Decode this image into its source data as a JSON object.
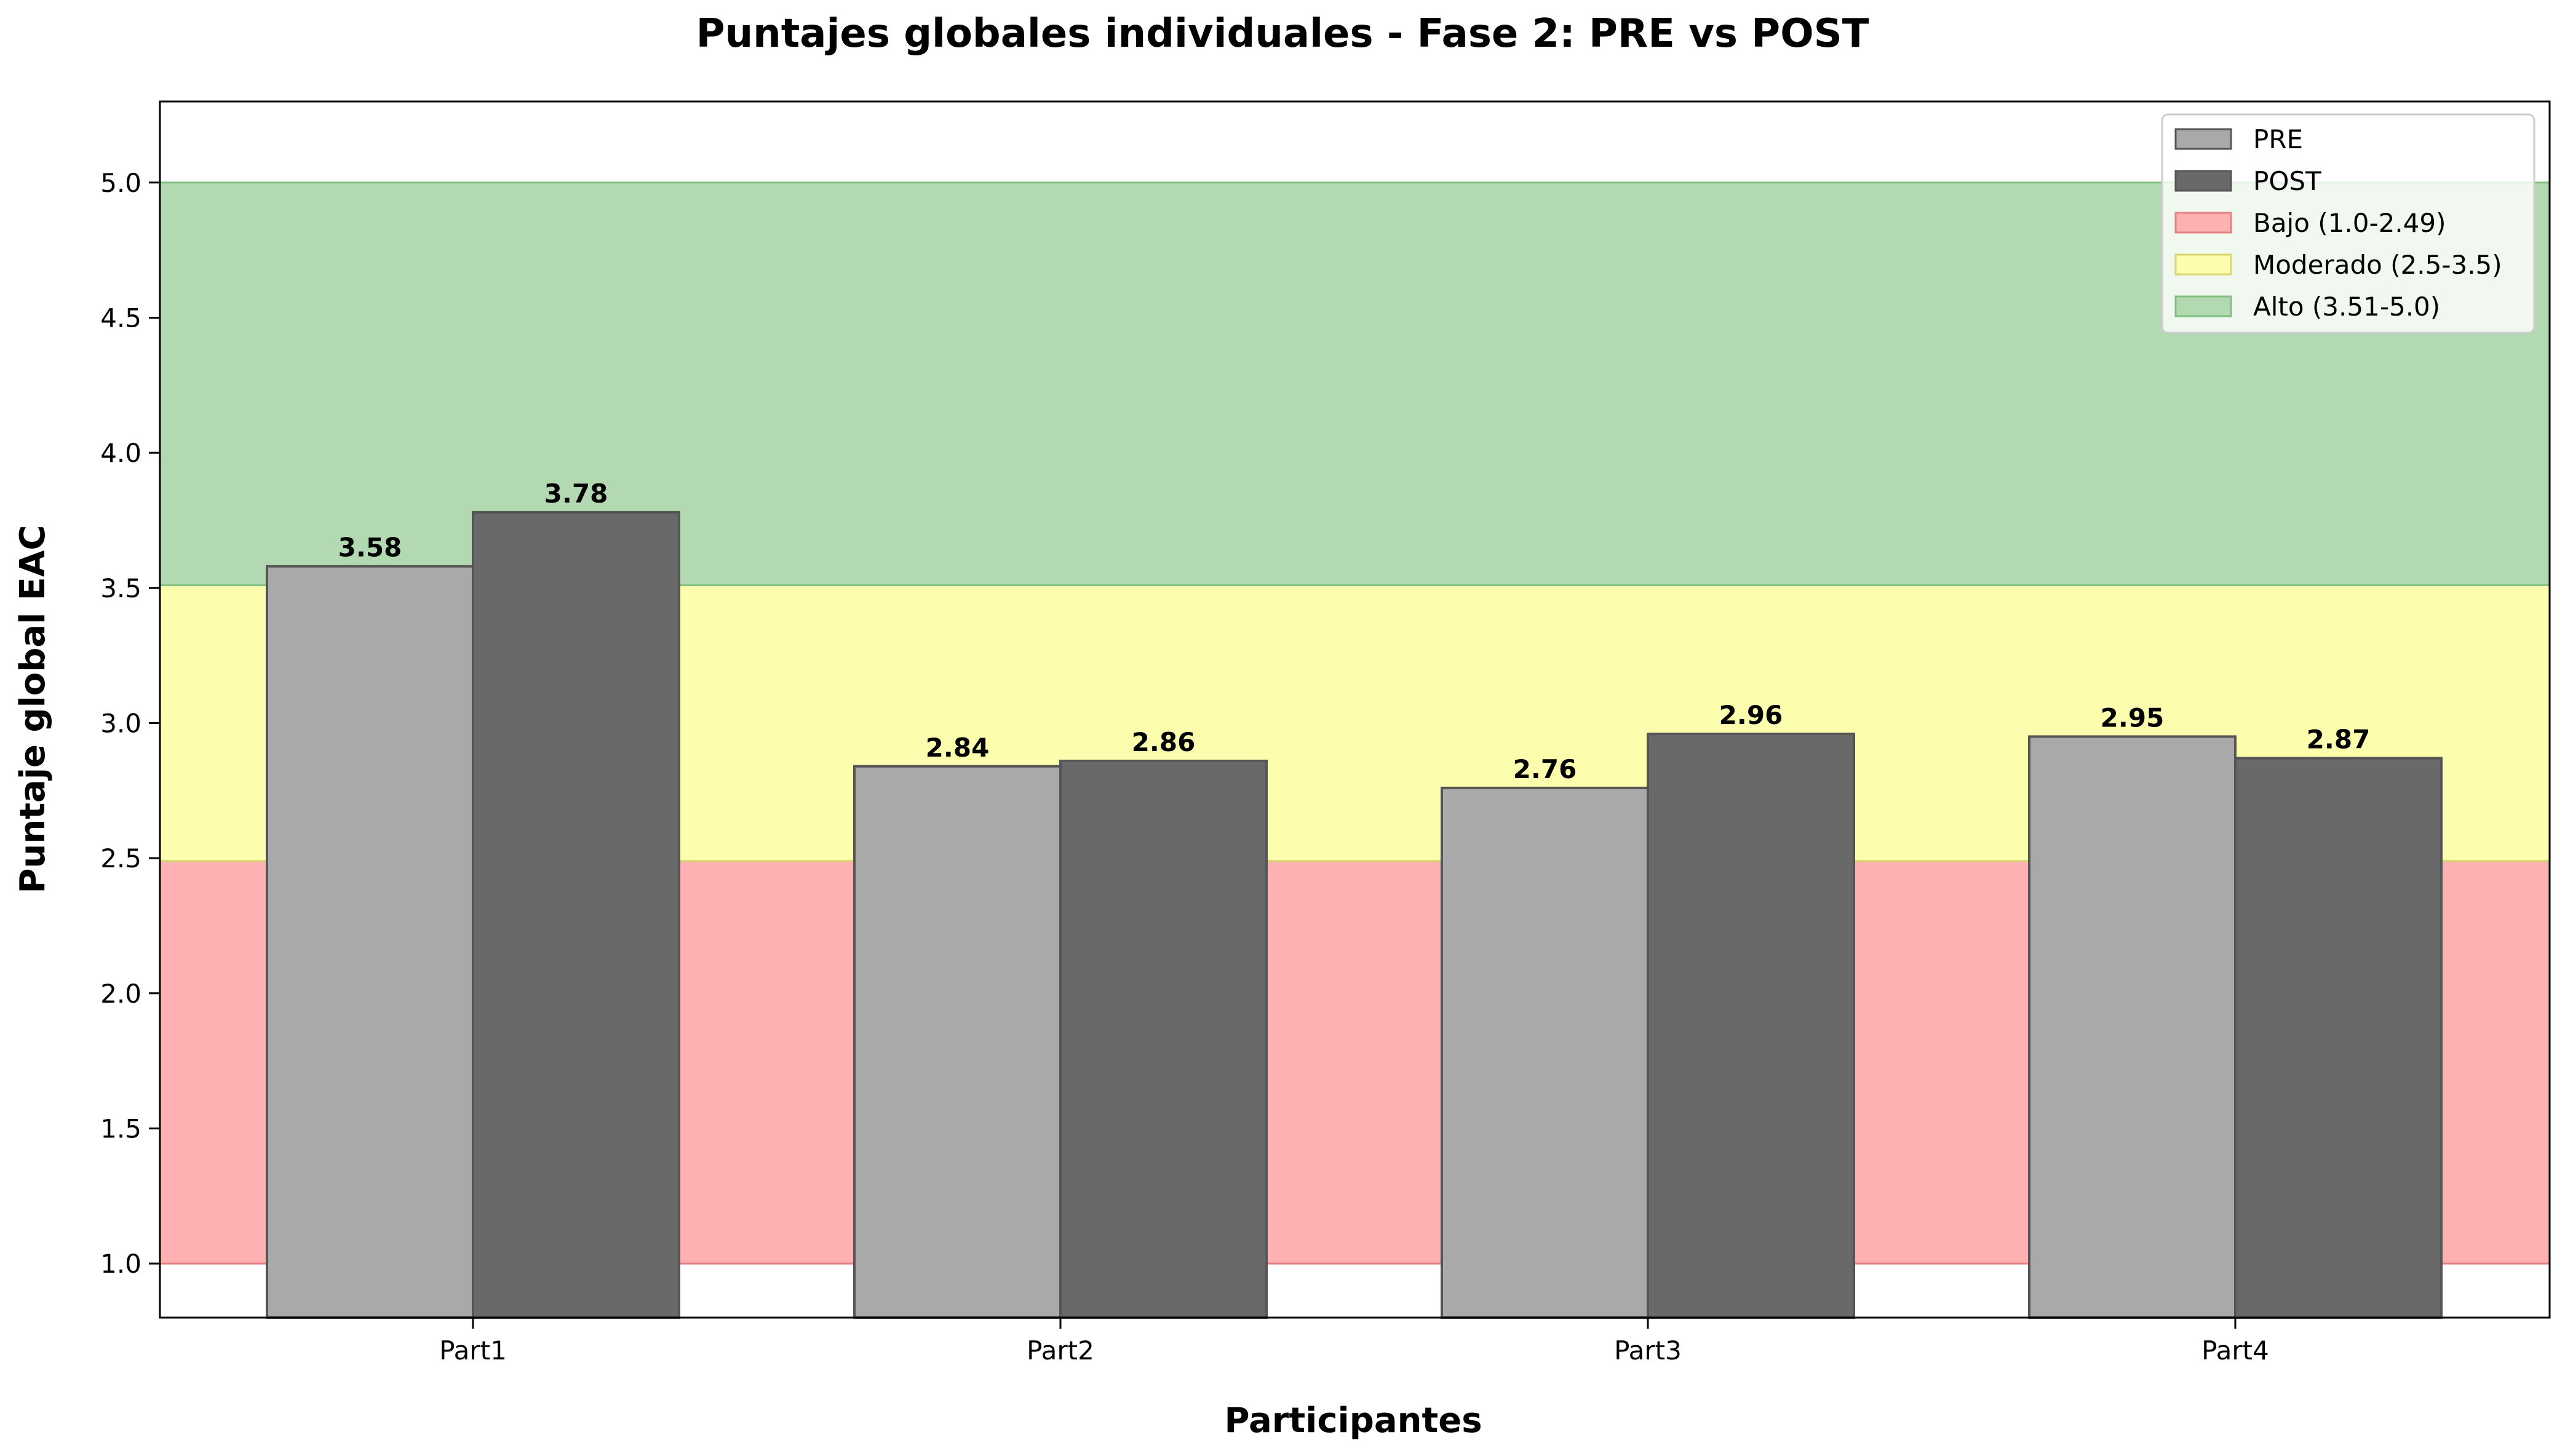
{
  "colors": {
    "pre": "#a9a9a9",
    "post": "#696969",
    "bajo": "#fdb1b2",
    "moderado": "#fdfdae",
    "alto": "#b3d9b3",
    "bajo_edge": "#e48080",
    "moderado_edge": "#d8d870",
    "alto_edge": "#80c080",
    "bar_edge": "#555555"
  },
  "chart_data": {
    "type": "bar",
    "title": "Puntajes globales individuales - Fase 2: PRE vs POST",
    "xlabel": "Participantes",
    "ylabel": "Puntaje global EAC",
    "categories": [
      "Part1",
      "Part2",
      "Part3",
      "Part4"
    ],
    "series": [
      {
        "name": "PRE",
        "values": [
          3.58,
          2.84,
          2.76,
          2.95
        ],
        "labels": [
          "3.58",
          "2.84",
          "2.76",
          "2.95"
        ]
      },
      {
        "name": "POST",
        "values": [
          3.78,
          2.86,
          2.96,
          2.87
        ],
        "labels": [
          "3.78",
          "2.86",
          "2.96",
          "2.87"
        ]
      }
    ],
    "bands": [
      {
        "name": "Bajo (1.0-2.49)",
        "from": 1.0,
        "to": 2.49
      },
      {
        "name": "Moderado (2.5-3.5)",
        "from": 2.49,
        "to": 3.51
      },
      {
        "name": "Alto (3.51-5.0)",
        "from": 3.51,
        "to": 5.0
      }
    ],
    "ylim": [
      0.8,
      5.3
    ],
    "yticks": [
      "1.0",
      "1.5",
      "2.0",
      "2.5",
      "3.0",
      "3.5",
      "4.0",
      "4.5",
      "5.0"
    ],
    "grid": false,
    "legend_position": "top-right",
    "legend": [
      "PRE",
      "POST",
      "Bajo (1.0-2.49)",
      "Moderado (2.5-3.5)",
      "Alto (3.51-5.0)"
    ]
  }
}
